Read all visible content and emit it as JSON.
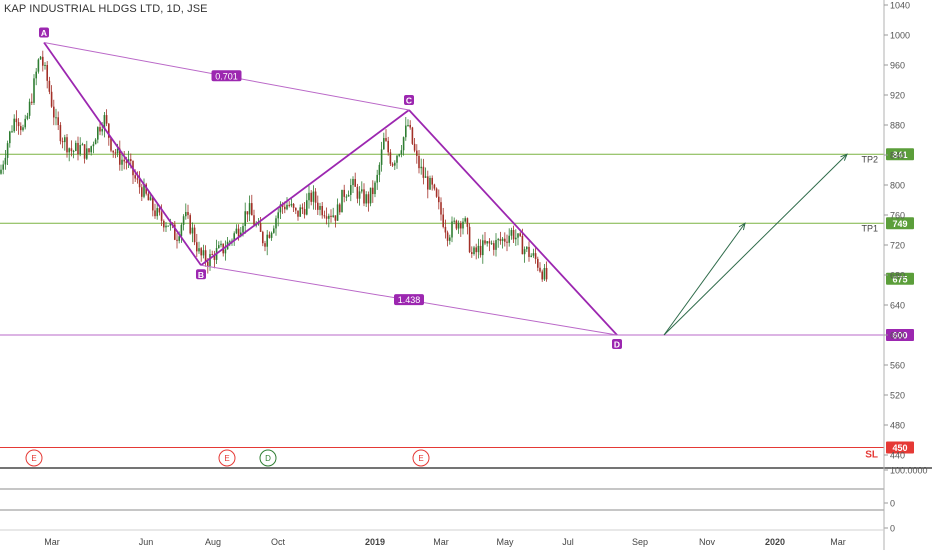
{
  "header": {
    "title": "KAP INDUSTRIAL HLDGS LTD, 1D, JSE"
  },
  "colors": {
    "pattern": "#9c27b0",
    "pattern_thin": "#ba68c8",
    "tp_line": "#7cb342",
    "tp_badge": "#5b9e3a",
    "sl": "#e53935",
    "projection": "#2e6b4a",
    "candle_up": "#2e7d32",
    "candle_down": "#a33028",
    "grid_text": "#555555"
  },
  "chart_data": {
    "type": "candlestick",
    "x_axis": {
      "ticks": [
        "Mar",
        "Jun",
        "Aug",
        "Oct",
        "2019",
        "Mar",
        "May",
        "Jul",
        "Sep",
        "Nov",
        "2020",
        "Mar"
      ],
      "bold_ticks": [
        "2019",
        "2020"
      ]
    },
    "y_axis": {
      "ticks": [
        1040,
        1000,
        960,
        920,
        880,
        840,
        800,
        760,
        720,
        680,
        640,
        600,
        560,
        520,
        480,
        440
      ],
      "range": [
        425,
        1045
      ]
    },
    "harmonic_pattern": {
      "points": [
        {
          "label": "A",
          "value": 990
        },
        {
          "label": "B",
          "value": 693
        },
        {
          "label": "C",
          "value": 900
        },
        {
          "label": "D",
          "value": 600
        }
      ],
      "ratios": [
        {
          "label": "0.701",
          "between": "A-C"
        },
        {
          "label": "1.438",
          "between": "B-D"
        }
      ]
    },
    "levels": [
      {
        "label": "TP2",
        "value": 841,
        "badge": "841"
      },
      {
        "label": "TP1",
        "value": 749,
        "badge": "749"
      },
      {
        "label": "",
        "value": 600,
        "badge": "600"
      },
      {
        "label": "SL",
        "value": 450,
        "badge": "450"
      }
    ],
    "last_price": {
      "value": 675,
      "badge": "675"
    },
    "projection_targets": [
      "TP1",
      "TP2"
    ],
    "events": [
      "E",
      "E",
      "D",
      "E"
    ],
    "indicator_axis": {
      "ticks": [
        "100.0000",
        "0",
        "0"
      ]
    },
    "price_series_approx": [
      [
        0,
        815
      ],
      [
        8,
        860
      ],
      [
        16,
        895
      ],
      [
        24,
        870
      ],
      [
        32,
        920
      ],
      [
        40,
        975
      ],
      [
        48,
        935
      ],
      [
        56,
        880
      ],
      [
        64,
        860
      ],
      [
        72,
        845
      ],
      [
        80,
        850
      ],
      [
        88,
        840
      ],
      [
        96,
        870
      ],
      [
        104,
        890
      ],
      [
        112,
        850
      ],
      [
        120,
        835
      ],
      [
        128,
        830
      ],
      [
        136,
        805
      ],
      [
        144,
        790
      ],
      [
        152,
        770
      ],
      [
        160,
        755
      ],
      [
        168,
        750
      ],
      [
        176,
        730
      ],
      [
        184,
        760
      ],
      [
        192,
        740
      ],
      [
        200,
        705
      ],
      [
        208,
        700
      ],
      [
        216,
        710
      ],
      [
        224,
        715
      ],
      [
        232,
        730
      ],
      [
        240,
        745
      ],
      [
        248,
        770
      ],
      [
        256,
        745
      ],
      [
        264,
        725
      ],
      [
        272,
        745
      ],
      [
        280,
        770
      ],
      [
        288,
        775
      ],
      [
        296,
        760
      ],
      [
        304,
        770
      ],
      [
        312,
        785
      ],
      [
        320,
        770
      ],
      [
        328,
        765
      ],
      [
        336,
        760
      ],
      [
        344,
        790
      ],
      [
        352,
        800
      ],
      [
        360,
        785
      ],
      [
        368,
        780
      ],
      [
        376,
        800
      ],
      [
        384,
        860
      ],
      [
        392,
        830
      ],
      [
        400,
        850
      ],
      [
        408,
        880
      ],
      [
        416,
        835
      ],
      [
        424,
        810
      ],
      [
        432,
        795
      ],
      [
        440,
        765
      ],
      [
        448,
        735
      ],
      [
        456,
        750
      ],
      [
        464,
        755
      ],
      [
        472,
        705
      ],
      [
        480,
        715
      ],
      [
        488,
        720
      ],
      [
        496,
        722
      ],
      [
        504,
        728
      ],
      [
        512,
        738
      ],
      [
        520,
        722
      ],
      [
        528,
        710
      ],
      [
        536,
        700
      ],
      [
        540,
        690
      ],
      [
        544,
        680
      ],
      [
        548,
        672
      ]
    ]
  }
}
